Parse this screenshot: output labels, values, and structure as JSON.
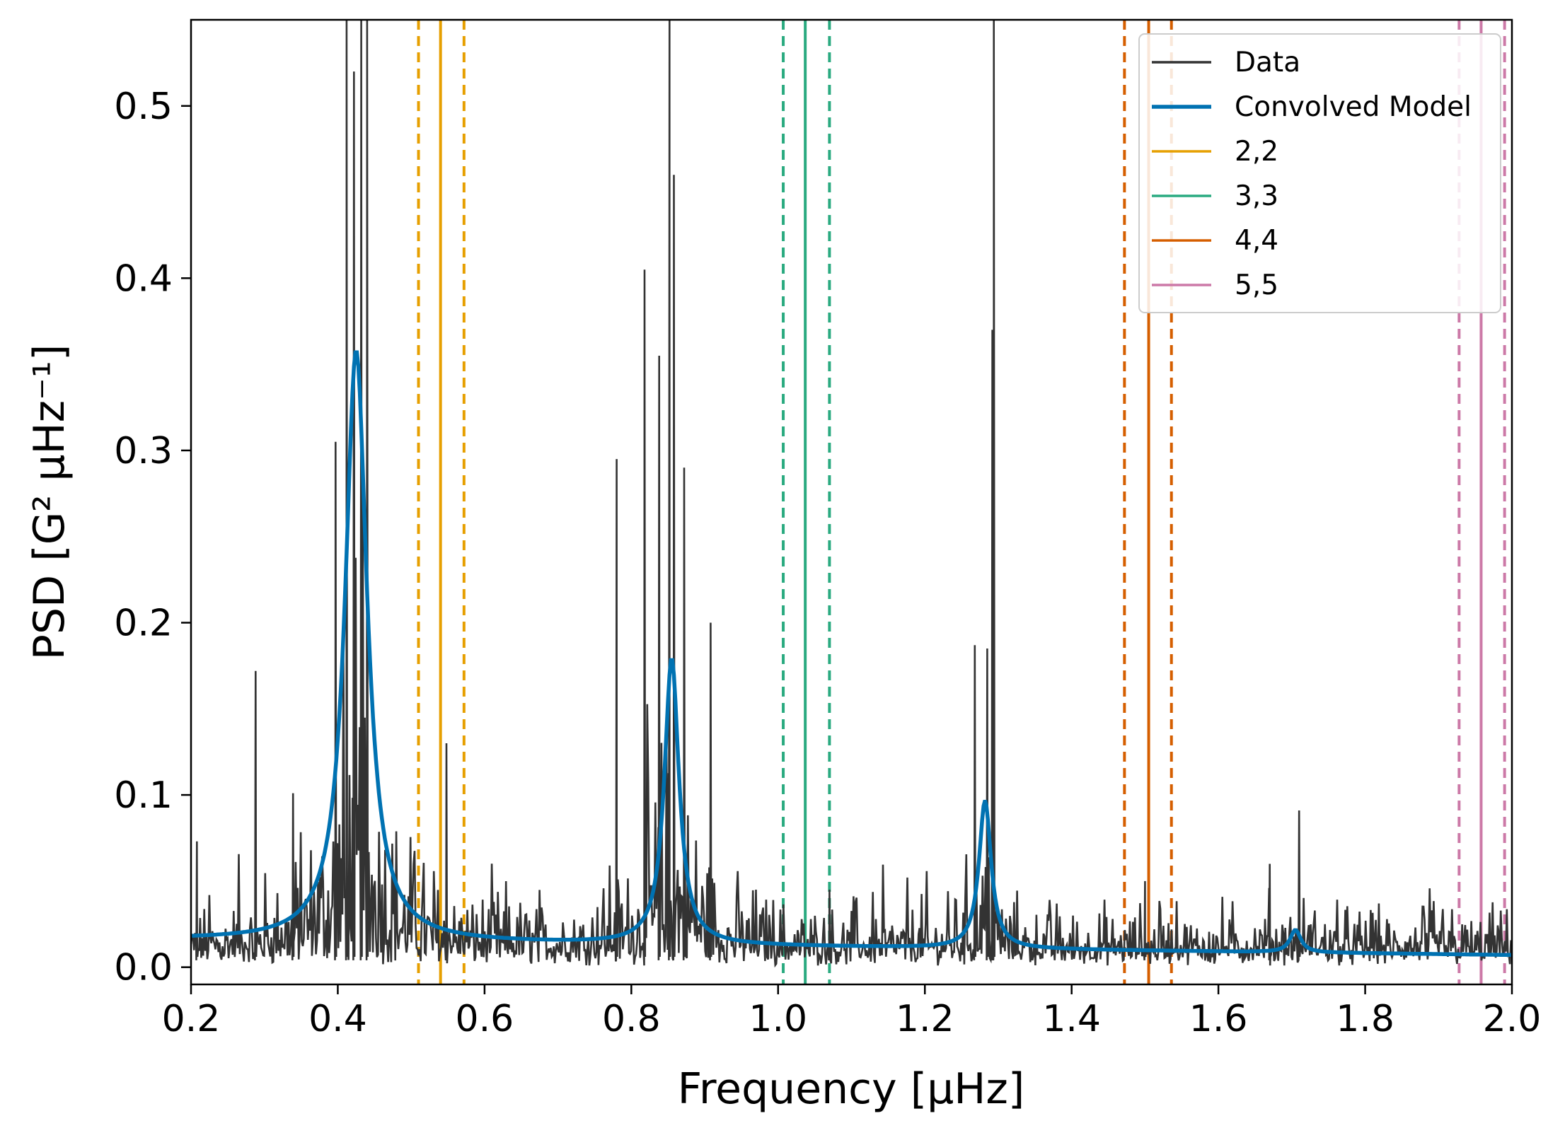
{
  "chart_data": {
    "type": "line",
    "title": "",
    "xlabel": "Frequency [μHz]",
    "ylabel": "PSD [G² μHz⁻¹]",
    "xlim": [
      0.2,
      2.0
    ],
    "ylim": [
      -0.01,
      0.55
    ],
    "x_ticks": [
      0.2,
      0.4,
      0.6,
      0.8,
      1.0,
      1.2,
      1.4,
      1.6,
      1.8,
      2.0
    ],
    "x_tick_labels": [
      "0.2",
      "0.4",
      "0.6",
      "0.8",
      "1.0",
      "1.2",
      "1.4",
      "1.6",
      "1.8",
      "2.0"
    ],
    "y_ticks": [
      0.0,
      0.1,
      0.2,
      0.3,
      0.4,
      0.5
    ],
    "y_tick_labels": [
      "0.0",
      "0.1",
      "0.2",
      "0.3",
      "0.4",
      "0.5"
    ],
    "grid": false,
    "legend_position": "top-right",
    "series": [
      {
        "name": "Data",
        "color": "#333333",
        "kind": "noisy-spectrum",
        "baseline": 0.008,
        "noise_amplitude": 0.018,
        "x_range": [
          0.2,
          2.0
        ],
        "peaks": [
          {
            "center": 0.425,
            "height": 0.62,
            "width": 0.045
          },
          {
            "center": 0.855,
            "height": 0.4,
            "width": 0.04
          },
          {
            "center": 1.28,
            "height": 0.19,
            "width": 0.02
          },
          {
            "center": 1.705,
            "height": 0.04,
            "width": 0.03
          }
        ],
        "spikes": [
          {
            "x": 0.208,
            "y": 0.073
          },
          {
            "x": 0.288,
            "y": 0.172
          },
          {
            "x": 0.339,
            "y": 0.101
          },
          {
            "x": 0.397,
            "y": 0.305
          },
          {
            "x": 0.412,
            "y": 0.55
          },
          {
            "x": 0.422,
            "y": 0.52
          },
          {
            "x": 0.432,
            "y": 0.55
          },
          {
            "x": 0.44,
            "y": 0.55
          },
          {
            "x": 0.548,
            "y": 0.13
          },
          {
            "x": 0.78,
            "y": 0.295
          },
          {
            "x": 0.818,
            "y": 0.405
          },
          {
            "x": 0.838,
            "y": 0.355
          },
          {
            "x": 0.852,
            "y": 0.55
          },
          {
            "x": 0.858,
            "y": 0.46
          },
          {
            "x": 0.872,
            "y": 0.29
          },
          {
            "x": 0.908,
            "y": 0.2
          },
          {
            "x": 1.07,
            "y": 0.045
          },
          {
            "x": 1.268,
            "y": 0.187
          },
          {
            "x": 1.285,
            "y": 0.185
          },
          {
            "x": 1.292,
            "y": 0.37
          },
          {
            "x": 1.294,
            "y": 0.55
          },
          {
            "x": 1.5,
            "y": 0.05
          },
          {
            "x": 1.67,
            "y": 0.06
          },
          {
            "x": 1.71,
            "y": 0.091
          }
        ]
      },
      {
        "name": "Convolved Model",
        "color": "#0072b2",
        "kind": "lorentzian-sum",
        "baseline_start": 0.016,
        "baseline_end": 0.007,
        "peaks": [
          {
            "center": 0.425,
            "height": 0.343,
            "hwhm": 0.018
          },
          {
            "center": 0.855,
            "height": 0.166,
            "hwhm": 0.012
          },
          {
            "center": 1.282,
            "height": 0.086,
            "hwhm": 0.01
          },
          {
            "center": 1.705,
            "height": 0.013,
            "hwhm": 0.009
          }
        ]
      },
      {
        "name": "2,2",
        "color": "#e69f00",
        "kind": "vline-set",
        "center": 0.54,
        "dashed": [
          0.51,
          0.572
        ]
      },
      {
        "name": "3,3",
        "color": "#2aaa80",
        "kind": "vline-set",
        "center": 1.037,
        "dashed": [
          1.007,
          1.07
        ]
      },
      {
        "name": "4,4",
        "color": "#d55e00",
        "kind": "vline-set",
        "center": 1.505,
        "dashed": [
          1.472,
          1.536
        ]
      },
      {
        "name": "5,5",
        "color": "#cc79a7",
        "kind": "vline-set",
        "center": 1.958,
        "dashed": [
          1.928,
          1.99
        ]
      }
    ]
  }
}
